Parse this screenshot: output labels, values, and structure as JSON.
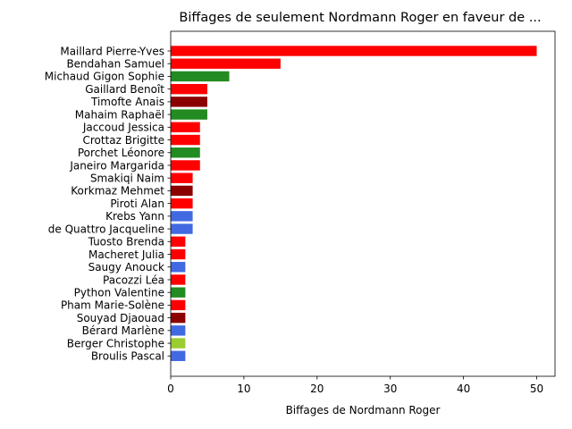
{
  "chart_data": {
    "type": "bar",
    "orientation": "horizontal",
    "title": "Biffages de seulement Nordmann Roger en faveur de ...",
    "xlabel": "Biffages de Nordmann Roger",
    "ylabel": "",
    "xlim": [
      0,
      52.5
    ],
    "xticks": [
      0,
      10,
      20,
      30,
      40,
      50
    ],
    "grid": false,
    "categories": [
      "Maillard Pierre-Yves",
      "Bendahan Samuel",
      "Michaud Gigon Sophie",
      "Gaillard Benoît",
      "Timofte Anais",
      "Mahaim Raphaël",
      "Jaccoud Jessica",
      "Crottaz Brigitte",
      "Porchet Léonore",
      "Janeiro Margarida",
      "Smakiqi Naim",
      "Korkmaz Mehmet",
      "Piroti Alan",
      "Krebs Yann",
      "de Quattro Jacqueline",
      "Tuosto Brenda",
      "Macheret Julia",
      "Saugy Anouck",
      "Pacozzi Léa",
      "Python Valentine",
      "Pham Marie-Solène",
      "Souyad Djaouad",
      "Bérard Marlène",
      "Berger Christophe",
      "Broulis Pascal"
    ],
    "values": [
      50,
      15,
      8,
      5,
      5,
      5,
      4,
      4,
      4,
      4,
      3,
      3,
      3,
      3,
      3,
      2,
      2,
      2,
      2,
      2,
      2,
      2,
      2,
      2,
      2
    ],
    "colors": [
      "#ff0000",
      "#ff0000",
      "#228b22",
      "#ff0000",
      "#8b0000",
      "#228b22",
      "#ff0000",
      "#ff0000",
      "#228b22",
      "#ff0000",
      "#ff0000",
      "#8b0000",
      "#ff0000",
      "#4169e1",
      "#4169e1",
      "#ff0000",
      "#ff0000",
      "#4169e1",
      "#ff0000",
      "#228b22",
      "#ff0000",
      "#8b0000",
      "#4169e1",
      "#9acd32",
      "#4169e1"
    ]
  }
}
